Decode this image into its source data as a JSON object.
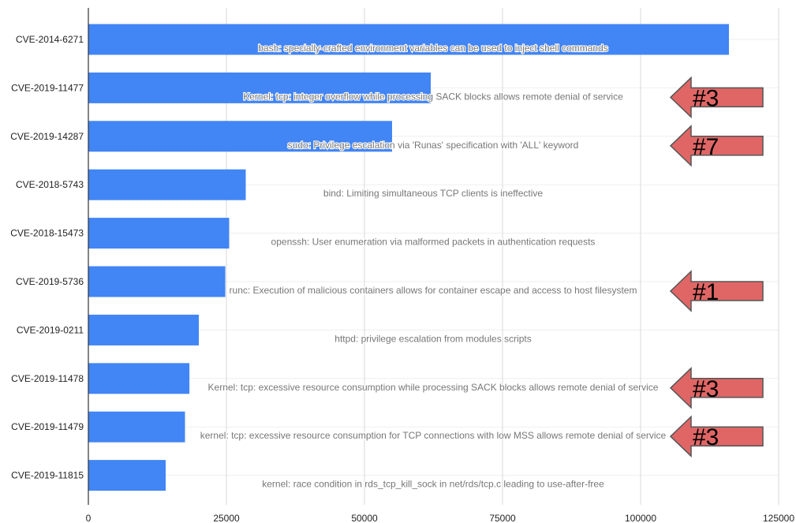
{
  "chart_data": {
    "type": "bar",
    "orientation": "horizontal",
    "title": "",
    "xlabel": "",
    "ylabel": "",
    "xlim": [
      0,
      125000
    ],
    "xticks": [
      0,
      25000,
      50000,
      75000,
      100000,
      125000
    ],
    "xtick_labels": [
      "0",
      "25000",
      "50000",
      "75000",
      "100000",
      "125000"
    ],
    "grid": "vertical",
    "bar_color": "#4285f4",
    "arrow_color": "#e06666",
    "categories": [
      "CVE-2014-6271",
      "CVE-2019-11477",
      "CVE-2019-14287",
      "CVE-2018-5743",
      "CVE-2018-15473",
      "CVE-2019-5736",
      "CVE-2019-0211",
      "CVE-2019-11478",
      "CVE-2019-11479",
      "CVE-2019-11815"
    ],
    "values": [
      116000,
      62000,
      55000,
      28500,
      25500,
      24800,
      20000,
      18300,
      17500,
      14000
    ],
    "descriptions": [
      "bash: specially-crafted environment variables can be used to inject shell commands",
      "Kernel: tcp: integer overflow while processing SACK blocks allows remote denial of service",
      "sudo: Privilege escalation via 'Runas' specification with 'ALL' keyword",
      "bind: Limiting simultaneous TCP clients is ineffective",
      "openssh: User enumeration via malformed packets in authentication requests",
      "runc: Execution of malicious containers allows for container escape and access to host filesystem",
      "httpd: privilege escalation from modules scripts",
      "Kernel: tcp: excessive resource consumption while processing SACK blocks allows remote denial of service",
      "kernel: tcp: excessive resource consumption for TCP connections with low MSS allows remote denial of service",
      "kernel: race condition in rds_tcp_kill_sock in net/rds/tcp.c leading to use-after-free"
    ],
    "annotations": [
      {
        "category": "CVE-2019-11477",
        "label": "#3"
      },
      {
        "category": "CVE-2019-14287",
        "label": "#7"
      },
      {
        "category": "CVE-2019-5736",
        "label": "#1"
      },
      {
        "category": "CVE-2019-11478",
        "label": "#3"
      },
      {
        "category": "CVE-2019-11479",
        "label": "#3"
      }
    ]
  }
}
